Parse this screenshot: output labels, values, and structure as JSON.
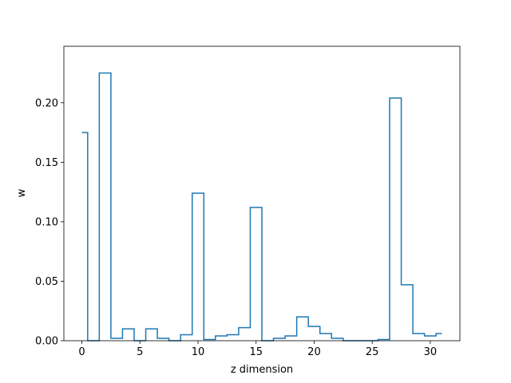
{
  "chart_data": {
    "type": "line",
    "drawstyle": "steps-mid",
    "title": "",
    "xlabel": "z dimension",
    "ylabel": "w",
    "xlim": [
      -1.55,
      32.55
    ],
    "ylim": [
      0.0,
      0.2475
    ],
    "xticks": [
      0,
      5,
      10,
      15,
      20,
      25,
      30
    ],
    "xtick_labels": [
      "0",
      "5",
      "10",
      "15",
      "20",
      "25",
      "30"
    ],
    "yticks": [
      0.0,
      0.05,
      0.1,
      0.15,
      0.2
    ],
    "ytick_labels": [
      "0.00",
      "0.05",
      "0.10",
      "0.15",
      "0.20"
    ],
    "grid": false,
    "line_color": "#1f77b4",
    "series": [
      {
        "x": [
          0,
          1,
          2,
          3,
          4,
          5,
          6,
          7,
          8,
          9,
          10,
          11,
          12,
          13,
          14,
          15,
          16,
          17,
          18,
          19,
          20,
          21,
          22,
          23,
          24,
          25,
          26,
          27,
          28,
          29,
          30,
          31
        ],
        "values": [
          0.175,
          0.0,
          0.225,
          0.002,
          0.01,
          0.0,
          0.01,
          0.002,
          0.0,
          0.005,
          0.124,
          0.001,
          0.004,
          0.005,
          0.011,
          0.112,
          0.0,
          0.002,
          0.004,
          0.02,
          0.012,
          0.006,
          0.002,
          0.0,
          0.0,
          0.0,
          0.001,
          0.204,
          0.047,
          0.006,
          0.004,
          0.006
        ]
      }
    ]
  }
}
